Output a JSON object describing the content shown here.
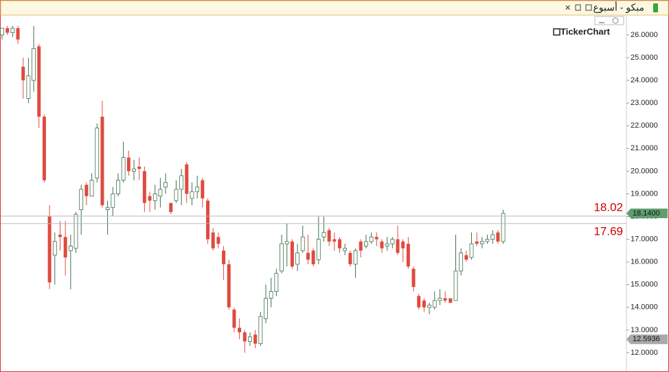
{
  "header": {
    "title": "مبكو - أسبوع"
  },
  "logo": "TickerChart",
  "chart_data": {
    "type": "candlestick",
    "open": [
      26.0,
      26.3,
      26.1,
      26.3,
      24.6,
      23.2,
      24.0,
      25.5,
      22.4,
      18.0,
      16.3,
      17.2,
      17.1,
      16.5,
      16.6,
      18.3,
      19.4,
      18.9,
      19.7,
      22.4,
      18.3,
      18.4,
      19.0,
      19.6,
      20.6,
      20.0,
      20.2,
      20.0,
      18.9,
      18.7,
      18.9,
      19.3,
      18.6,
      18.7,
      19.2,
      20.3,
      18.8,
      19.1,
      19.6,
      18.7,
      17.3,
      17.1,
      16.5,
      15.9,
      13.9,
      13.1,
      12.9,
      12.5,
      12.8,
      12.4,
      13.5,
      14.4,
      14.7,
      15.6,
      16.8,
      16.9,
      15.9,
      16.5,
      16.4,
      16.5,
      16.1,
      17.1,
      17.4,
      17.0,
      17.0,
      16.5,
      16.4,
      15.9,
      16.9,
      16.7,
      16.9,
      17.1,
      16.9,
      16.7,
      16.8,
      17.0,
      16.9,
      16.8,
      15.7,
      14.5,
      14.3,
      14.0,
      14.0,
      14.3,
      14.4,
      14.4,
      14.3,
      15.6,
      16.3,
      16.2,
      16.9,
      16.8,
      16.9,
      17.0,
      17.3,
      16.9
    ],
    "high": [
      26.3,
      26.4,
      26.4,
      26.4,
      25.0,
      25.0,
      26.4,
      25.6,
      22.5,
      18.5,
      17.3,
      17.8,
      17.8,
      17.2,
      18.2,
      19.4,
      19.5,
      19.9,
      22.1,
      23.1,
      18.7,
      19.3,
      19.9,
      21.3,
      20.9,
      20.5,
      20.6,
      20.2,
      19.1,
      19.4,
      19.7,
      19.9,
      18.6,
      19.6,
      20.1,
      20.4,
      19.5,
      19.8,
      19.7,
      18.8,
      17.5,
      17.3,
      16.7,
      16.1,
      14.0,
      13.5,
      13.0,
      12.9,
      13.0,
      13.8,
      15.0,
      15.3,
      15.7,
      17.2,
      17.7,
      17.0,
      16.8,
      17.6,
      17.2,
      16.6,
      18.0,
      18.0,
      17.5,
      17.3,
      17.1,
      16.8,
      16.5,
      16.6,
      17.0,
      17.2,
      17.3,
      17.3,
      17.0,
      17.1,
      17.1,
      17.6,
      17.0,
      17.1,
      15.8,
      14.6,
      14.4,
      14.2,
      14.7,
      14.8,
      14.7,
      14.4,
      17.2,
      16.6,
      16.5,
      17.3,
      17.3,
      17.1,
      17.2,
      17.4,
      17.4,
      18.3
    ],
    "low": [
      25.8,
      26.0,
      25.9,
      25.6,
      23.2,
      23.0,
      23.5,
      21.9,
      19.5,
      14.8,
      15.0,
      16.5,
      15.4,
      14.8,
      16.4,
      17.2,
      18.5,
      18.9,
      19.5,
      18.4,
      17.2,
      18.0,
      18.9,
      19.5,
      19.8,
      19.6,
      19.6,
      18.2,
      18.2,
      18.3,
      18.4,
      19.0,
      18.1,
      18.6,
      18.5,
      18.6,
      18.5,
      18.8,
      18.4,
      16.8,
      16.5,
      16.6,
      15.2,
      13.9,
      12.9,
      12.6,
      12.0,
      12.3,
      12.2,
      12.3,
      13.3,
      14.0,
      14.5,
      15.5,
      15.8,
      15.7,
      15.6,
      16.4,
      15.9,
      15.8,
      15.9,
      16.9,
      16.7,
      16.5,
      16.4,
      16.3,
      15.8,
      15.3,
      16.2,
      16.6,
      16.8,
      16.7,
      16.4,
      16.5,
      16.6,
      16.3,
      16.0,
      15.7,
      14.7,
      13.9,
      13.8,
      13.7,
      13.9,
      14.1,
      14.2,
      14.2,
      14.3,
      15.4,
      16.0,
      16.1,
      16.7,
      16.6,
      16.8,
      16.8,
      16.8,
      16.8
    ],
    "close": [
      26.3,
      26.1,
      26.3,
      25.8,
      24.0,
      24.2,
      25.4,
      22.4,
      19.6,
      15.1,
      16.9,
      17.1,
      16.2,
      16.7,
      18.1,
      19.2,
      18.9,
      19.6,
      21.9,
      18.5,
      18.4,
      19.0,
      19.6,
      20.6,
      20.0,
      20.1,
      20.1,
      18.6,
      18.7,
      19.0,
      19.2,
      19.5,
      18.2,
      19.2,
      19.8,
      19.0,
      19.1,
      19.3,
      18.8,
      17.0,
      16.6,
      16.8,
      15.9,
      14.0,
      13.1,
      12.9,
      12.5,
      12.7,
      12.4,
      13.6,
      14.4,
      14.7,
      15.5,
      16.8,
      16.9,
      15.8,
      16.4,
      17.1,
      16.1,
      15.9,
      17.0,
      17.3,
      16.9,
      16.9,
      16.6,
      16.6,
      15.9,
      16.5,
      16.5,
      16.9,
      17.1,
      17.0,
      16.6,
      16.8,
      17.0,
      16.4,
      16.6,
      15.8,
      14.9,
      14.0,
      14.0,
      14.1,
      14.3,
      14.4,
      14.3,
      14.2,
      15.6,
      16.4,
      16.1,
      16.8,
      16.8,
      16.9,
      17.0,
      17.2,
      16.9,
      18.14
    ],
    "up_color": "#3f6e4c",
    "down_color": "#e04a3f",
    "ylim": [
      11.2,
      26.8
    ],
    "yticks": [
      {
        "value": 12,
        "label": "12.0000"
      },
      {
        "value": 13,
        "label": "13.0000"
      },
      {
        "value": 14,
        "label": "14.0000"
      },
      {
        "value": 15,
        "label": "15.0000"
      },
      {
        "value": 16,
        "label": "16.0000"
      },
      {
        "value": 17,
        "label": "17.0000"
      },
      {
        "value": 18,
        "label": "18.0000"
      },
      {
        "value": 19,
        "label": "19.0000"
      },
      {
        "value": 20,
        "label": "20.0000"
      },
      {
        "value": 21,
        "label": "21.0000"
      },
      {
        "value": 22,
        "label": "22.0000"
      },
      {
        "value": 23,
        "label": "23.0000"
      },
      {
        "value": 24,
        "label": "24.0000"
      },
      {
        "value": 25,
        "label": "25.0000"
      },
      {
        "value": 26,
        "label": "26.0000"
      }
    ],
    "hlines": [
      18.02,
      17.69
    ],
    "hline_color": "#cc0000",
    "last_price": {
      "value": 18.14,
      "label": "18.1400",
      "color": "#5f9e70"
    },
    "marker_price": 12.5936,
    "marker_color": "#a9a9a9",
    "grid": false
  }
}
